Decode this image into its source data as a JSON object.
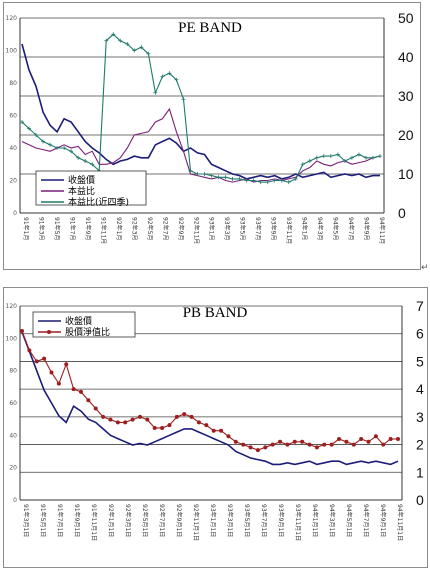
{
  "chart_data": [
    {
      "type": "line",
      "title": "PE BAND",
      "left_axis": {
        "ylim": [
          0,
          120
        ],
        "ticks": [
          0,
          20,
          40,
          60,
          80,
          100,
          120
        ]
      },
      "right_axis": {
        "ylim": [
          0,
          50
        ],
        "ticks": [
          0,
          10,
          20,
          30,
          40,
          50
        ]
      },
      "x_tick_labels": [
        "91年1月",
        "91年3月",
        "91年5月",
        "91年7月",
        "91年9月",
        "91年11月",
        "92年1月",
        "92年3月",
        "92年5月",
        "92年7月",
        "92年9月",
        "92年11月",
        "93年1月",
        "93年3月",
        "93年5月",
        "93年7月",
        "93年9月",
        "93年11月",
        "94年1月",
        "94年3月",
        "94年5月",
        "94年7月",
        "94年9月",
        "94年11月"
      ],
      "legend": {
        "placement": "bottom-left"
      },
      "grid": "horizontal",
      "series": [
        {
          "name": "收盤價",
          "axis": "left",
          "color": "#1c1c7a",
          "values": [
            104,
            88,
            78,
            62,
            54,
            50,
            58,
            56,
            50,
            44,
            40,
            37,
            33,
            30,
            32,
            33,
            35,
            34,
            34,
            42,
            44,
            46,
            43,
            38,
            40,
            37,
            36,
            30,
            28,
            26,
            24,
            23,
            21,
            22,
            23,
            22,
            23,
            21,
            22,
            24,
            22,
            23,
            24,
            25,
            22,
            23,
            24,
            23,
            24,
            22,
            23,
            23
          ]
        },
        {
          "name": "本益比",
          "axis": "left",
          "color": "#7a1f7a",
          "values": [
            44,
            42,
            40,
            39,
            38,
            40,
            42,
            40,
            41,
            36,
            38,
            30,
            30,
            31,
            34,
            40,
            48,
            49,
            50,
            56,
            58,
            64,
            50,
            38,
            24,
            23,
            22,
            21,
            22,
            20,
            19,
            20,
            21,
            19,
            20,
            20,
            21,
            20,
            21,
            22,
            26,
            28,
            32,
            30,
            29,
            31,
            32,
            30,
            31,
            32,
            34,
            35
          ]
        },
        {
          "name": "本益比(近四季)",
          "axis": "left",
          "color": "#1f7a6a",
          "values": [
            56,
            52,
            48,
            44,
            42,
            40,
            40,
            38,
            34,
            32,
            30,
            26,
            106,
            110,
            106,
            104,
            100,
            102,
            98,
            74,
            84,
            86,
            82,
            70,
            26,
            24,
            24,
            23,
            22,
            22,
            21,
            21,
            20,
            20,
            19,
            19,
            20,
            20,
            19,
            21,
            30,
            32,
            34,
            35,
            35,
            36,
            32,
            34,
            36,
            34,
            34,
            35
          ]
        }
      ]
    },
    {
      "type": "line",
      "title": "PB BAND",
      "left_axis": {
        "ylim": [
          0,
          120
        ],
        "ticks": [
          0,
          20,
          40,
          60,
          80,
          100,
          120
        ]
      },
      "right_axis": {
        "ylim": [
          0,
          7
        ],
        "ticks": [
          0,
          1,
          2,
          3,
          4,
          5,
          6,
          7
        ]
      },
      "x_tick_labels": [
        "91年3月1日",
        "91年5月1日",
        "91年7月1日",
        "91年9月1日",
        "91年11月1日",
        "92年1月1日",
        "92年3月1日",
        "92年5月1日",
        "92年7月1日",
        "92年9月1日",
        "92年11月1日",
        "93年1月1日",
        "93年3月1日",
        "93年5月1日",
        "93年7月1日",
        "93年9月1日",
        "93年11月1日",
        "94年1月1日",
        "94年3月1日",
        "94年5月1日",
        "94年7月1日",
        "94年9月1日",
        "94年11月1日"
      ],
      "legend": {
        "placement": "top-left"
      },
      "grid": "horizontal",
      "series": [
        {
          "name": "收盤價",
          "axis": "left",
          "color": "#1c1c7a",
          "values": [
            104,
            92,
            80,
            68,
            60,
            52,
            48,
            58,
            55,
            50,
            48,
            44,
            40,
            38,
            36,
            34,
            35,
            34,
            36,
            38,
            40,
            42,
            44,
            44,
            42,
            40,
            38,
            36,
            34,
            30,
            28,
            26,
            25,
            24,
            22,
            22,
            23,
            22,
            23,
            24,
            22,
            23,
            24,
            24,
            22,
            23,
            24,
            23,
            24,
            23,
            22,
            24
          ]
        },
        {
          "name": "股價淨值比",
          "axis": "right",
          "color": "#9e1e1e",
          "values": [
            6.1,
            5.4,
            5.0,
            5.1,
            4.6,
            4.2,
            4.9,
            4.0,
            3.9,
            3.6,
            3.3,
            3.0,
            2.9,
            2.8,
            2.8,
            2.9,
            3.0,
            2.9,
            2.6,
            2.6,
            2.7,
            3.0,
            3.1,
            3.0,
            2.8,
            2.7,
            2.5,
            2.5,
            2.3,
            2.1,
            2.0,
            1.9,
            1.8,
            1.9,
            2.0,
            2.1,
            2.0,
            2.1,
            2.1,
            2.0,
            1.9,
            2.0,
            2.0,
            2.2,
            2.1,
            2.0,
            2.2,
            2.1,
            2.3,
            2.0,
            2.2,
            2.2
          ]
        }
      ]
    }
  ]
}
